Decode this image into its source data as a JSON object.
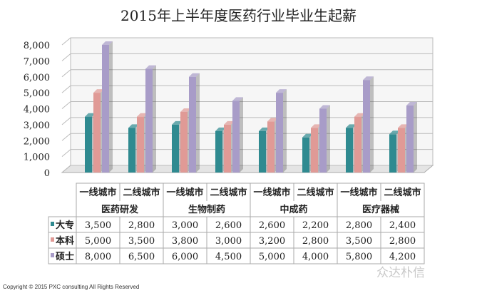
{
  "chart_data": {
    "type": "bar",
    "title": "2015年上半年度医药行业毕业生起薪",
    "groups": [
      "医药研发",
      "生物制药",
      "中成药",
      "医疗器械"
    ],
    "categories": [
      "一线城市",
      "二线城市",
      "一线城市",
      "二线城市",
      "一线城市",
      "二线城市",
      "一线城市",
      "二线城市"
    ],
    "series": [
      {
        "name": "大专",
        "color": "#2f8a90",
        "values": [
          3500,
          2800,
          3000,
          2600,
          2600,
          2200,
          2800,
          2400
        ]
      },
      {
        "name": "本科",
        "color": "#e09a96",
        "values": [
          5000,
          3500,
          3800,
          3000,
          3200,
          2800,
          3500,
          2800
        ]
      },
      {
        "name": "硕士",
        "color": "#a89cc8",
        "values": [
          8000,
          6500,
          6000,
          4500,
          5000,
          4000,
          5800,
          4200
        ]
      }
    ],
    "ylim": [
      0,
      8000
    ],
    "yticks": [
      "0",
      "1,000",
      "2,000",
      "3,000",
      "4,000",
      "5,000",
      "6,000",
      "7,000",
      "8,000"
    ],
    "table_values": [
      [
        "3,500",
        "2,800",
        "3,000",
        "2,600",
        "2,600",
        "2,200",
        "2,800",
        "2,400"
      ],
      [
        "5,000",
        "3,500",
        "3,800",
        "3,000",
        "3,200",
        "2,800",
        "3,500",
        "2,800"
      ],
      [
        "8,000",
        "6,500",
        "6,000",
        "4,500",
        "5,000",
        "4,000",
        "5,800",
        "4,200"
      ]
    ],
    "grid": true,
    "legend": "data-table"
  },
  "footer": {
    "copyright": "Copyright © 2015  PXC consulting All Rights Reserved",
    "watermark": "众达朴信"
  }
}
